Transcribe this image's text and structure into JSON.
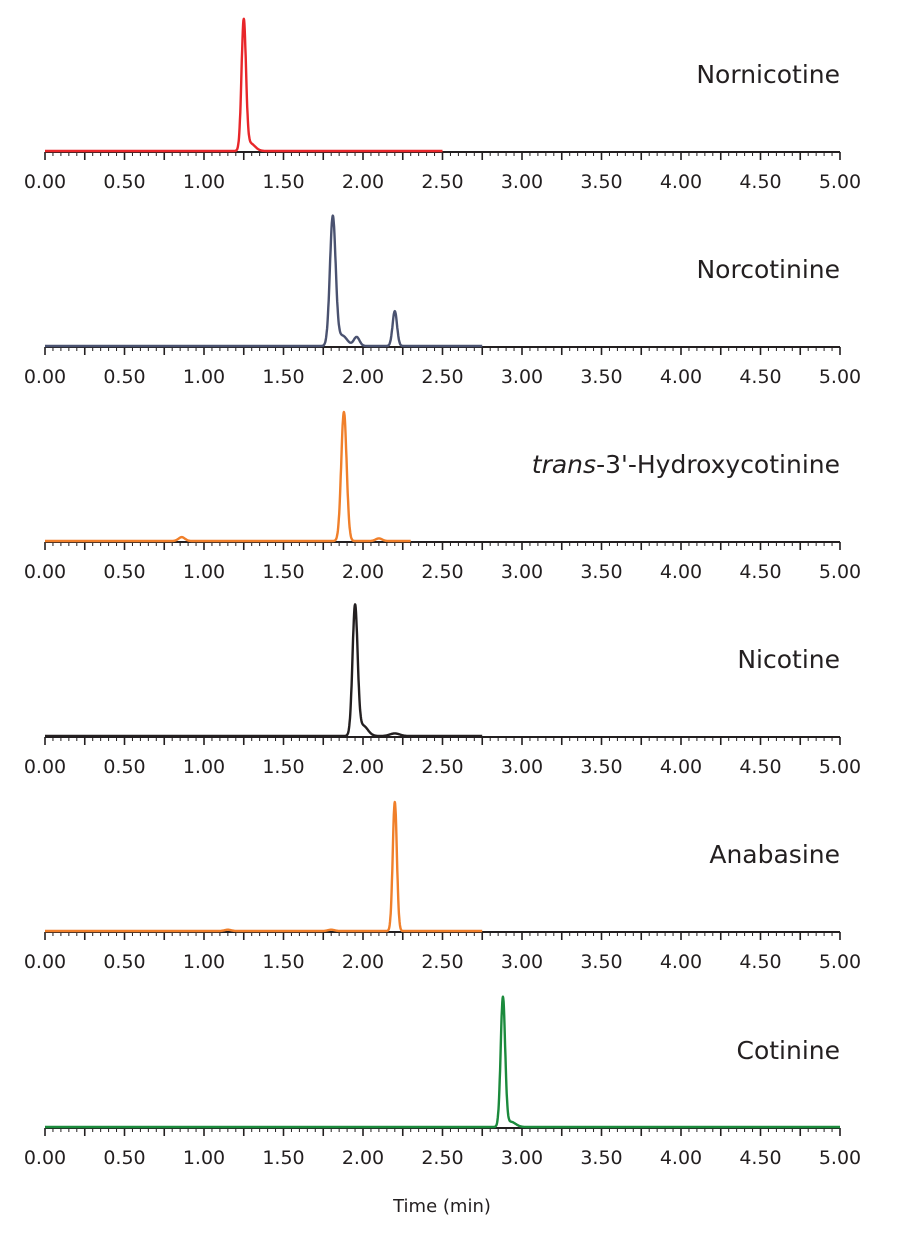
{
  "chart_data": {
    "type": "line",
    "title": "",
    "xlabel": "Time (min)",
    "ylabel": "",
    "xlim": [
      0,
      5
    ],
    "x_ticks": [
      "0.00",
      "0.50",
      "1.00",
      "1.50",
      "2.00",
      "2.50",
      "3.00",
      "3.50",
      "4.00",
      "4.50",
      "5.00"
    ],
    "grid": false,
    "y_units": "relative intensity (%)",
    "series": [
      {
        "name": "Nornicotine",
        "name_prefix_italic": "",
        "color": "#e8262a",
        "end": 2.5,
        "peaks": [
          {
            "rt": 1.25,
            "height": 100,
            "width": 0.014
          },
          {
            "rt": 1.29,
            "height": 6,
            "width": 0.03
          }
        ]
      },
      {
        "name": "Norcotinine",
        "name_prefix_italic": "",
        "color": "#4a5270",
        "end": 2.75,
        "peaks": [
          {
            "rt": 1.81,
            "height": 100,
            "width": 0.018
          },
          {
            "rt": 1.87,
            "height": 8,
            "width": 0.03
          },
          {
            "rt": 1.96,
            "height": 7,
            "width": 0.018
          },
          {
            "rt": 2.2,
            "height": 27,
            "width": 0.014
          }
        ]
      },
      {
        "name": "-3'-Hydroxycotinine",
        "name_prefix_italic": "trans",
        "color": "#f07f2a",
        "end": 2.3,
        "peaks": [
          {
            "rt": 0.86,
            "height": 3,
            "width": 0.02
          },
          {
            "rt": 1.88,
            "height": 100,
            "width": 0.017
          },
          {
            "rt": 2.1,
            "height": 2,
            "width": 0.02
          }
        ]
      },
      {
        "name": "Nicotine",
        "name_prefix_italic": "",
        "color": "#231f20",
        "end": 2.75,
        "peaks": [
          {
            "rt": 1.95,
            "height": 100,
            "width": 0.016
          },
          {
            "rt": 2.0,
            "height": 8,
            "width": 0.03
          },
          {
            "rt": 2.2,
            "height": 2,
            "width": 0.03
          }
        ]
      },
      {
        "name": "Anabasine",
        "name_prefix_italic": "",
        "color": "#f07f2a",
        "end": 2.75,
        "peaks": [
          {
            "rt": 1.15,
            "height": 1,
            "width": 0.02
          },
          {
            "rt": 1.8,
            "height": 1,
            "width": 0.02
          },
          {
            "rt": 2.2,
            "height": 100,
            "width": 0.013
          }
        ]
      },
      {
        "name": "Cotinine",
        "name_prefix_italic": "",
        "color": "#1b8a3c",
        "end": 5.0,
        "peaks": [
          {
            "rt": 2.88,
            "height": 100,
            "width": 0.014
          },
          {
            "rt": 2.93,
            "height": 4,
            "width": 0.03
          }
        ]
      }
    ]
  }
}
